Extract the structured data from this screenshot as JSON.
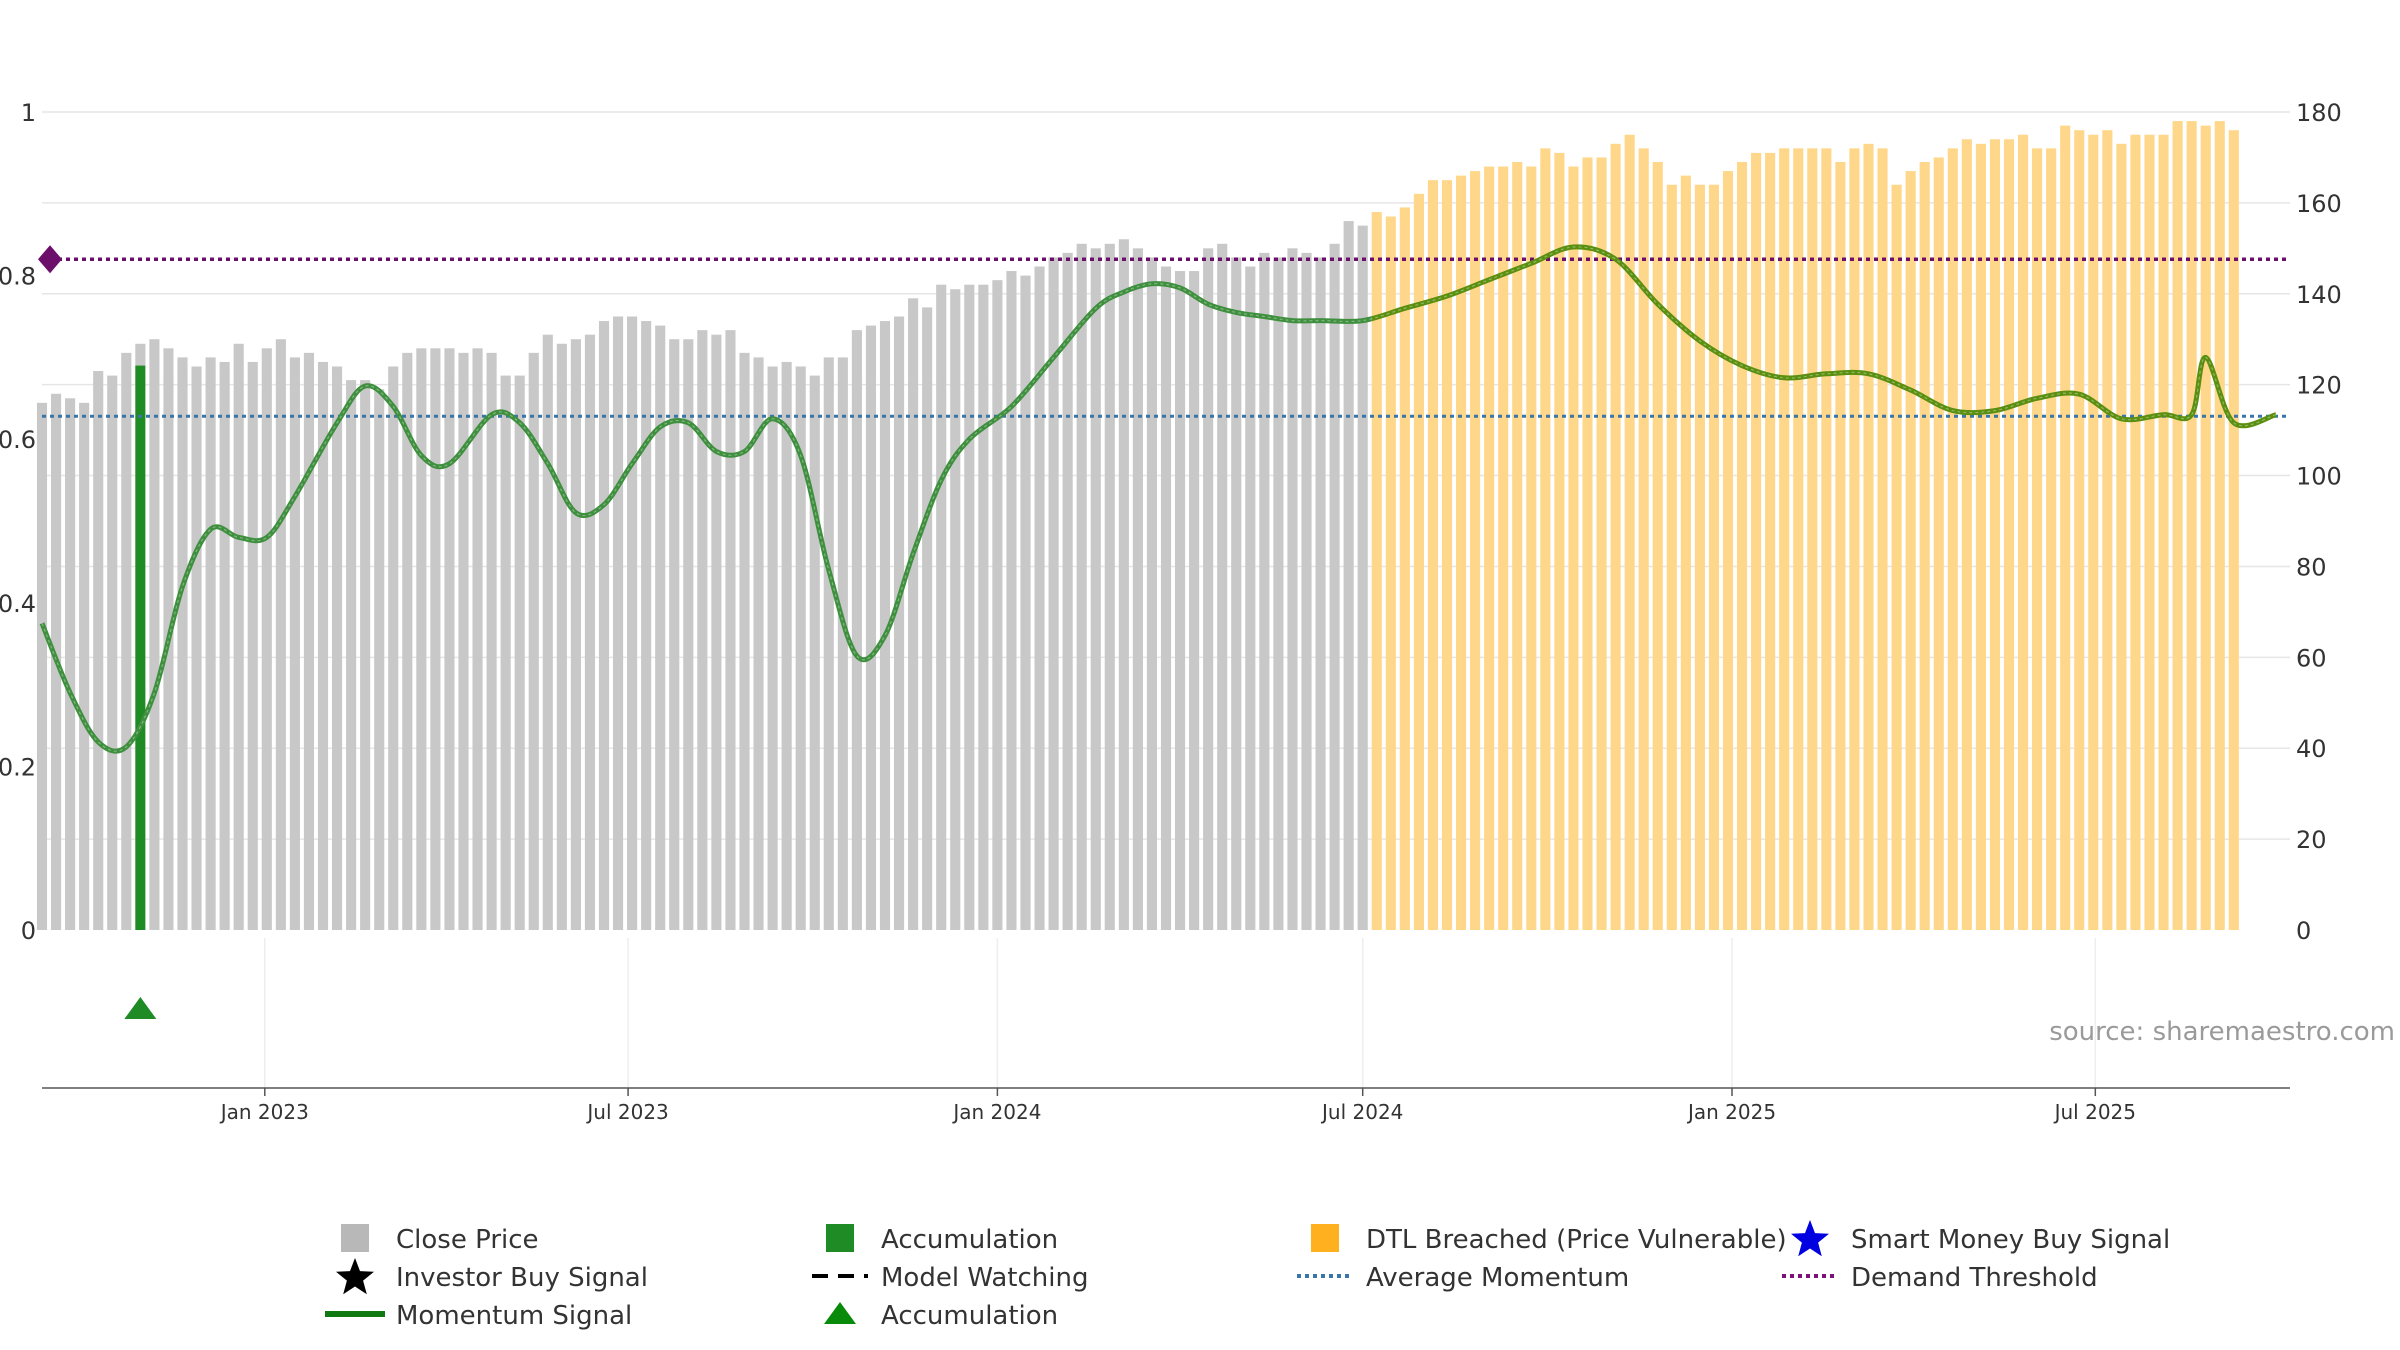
{
  "chart_data": {
    "type": "bar",
    "source": "source: sharemaestro.com",
    "x_range": [
      "2022-09-12",
      "2025-10-06"
    ],
    "x_ticks": [
      {
        "date": "2023-01-01",
        "label": "Jan 2023"
      },
      {
        "date": "2023-07-01",
        "label": "Jul 2023"
      },
      {
        "date": "2024-01-01",
        "label": "Jan 2024"
      },
      {
        "date": "2024-07-01",
        "label": "Jul 2024"
      },
      {
        "date": "2025-01-01",
        "label": "Jan 2025"
      },
      {
        "date": "2025-07-01",
        "label": "Jul 2025"
      }
    ],
    "y_left": {
      "range": [
        0,
        1
      ],
      "ticks": [
        {
          "value": 0,
          "label": "0"
        },
        {
          "value": 0.2,
          "label": "0.2"
        },
        {
          "value": 0.4,
          "label": "0.4"
        },
        {
          "value": 0.6,
          "label": "0.6"
        },
        {
          "value": 0.8,
          "label": "0.8"
        },
        {
          "value": 1,
          "label": "1"
        }
      ]
    },
    "y_right": {
      "range": [
        0,
        180
      ],
      "ticks": [
        0,
        20,
        40,
        60,
        80,
        100,
        120,
        140,
        160,
        180
      ]
    },
    "grid": true,
    "legend_position": "bottom",
    "series_close_price": {
      "name": "Close Price",
      "start_date": "2022-09-12",
      "interval_days": 7,
      "dtl_breach_index": 95,
      "values": [
        116,
        118,
        117,
        116,
        123,
        122,
        127,
        129,
        130,
        128,
        126,
        124,
        126,
        125,
        129,
        125,
        128,
        130,
        126,
        127,
        125,
        124,
        121,
        121,
        119,
        124,
        127,
        128,
        128,
        128,
        127,
        128,
        127,
        122,
        122,
        127,
        131,
        129,
        130,
        131,
        134,
        135,
        135,
        134,
        133,
        130,
        130,
        132,
        131,
        132,
        127,
        126,
        124,
        125,
        124,
        122,
        126,
        126,
        132,
        133,
        134,
        135,
        139,
        137,
        142,
        141,
        142,
        142,
        143,
        145,
        144,
        146,
        148,
        149,
        151,
        150,
        151,
        152,
        150,
        148,
        146,
        145,
        145,
        150,
        151,
        148,
        146,
        149,
        148,
        150,
        149,
        148,
        151,
        156,
        155,
        158,
        157,
        159,
        162,
        165,
        165,
        166,
        167,
        168,
        168,
        169,
        168,
        172,
        171,
        168,
        170,
        170,
        173,
        175,
        172,
        169,
        164,
        166,
        164,
        164,
        167,
        169,
        171,
        171,
        172,
        172,
        172,
        172,
        169,
        172,
        173,
        172,
        164,
        167,
        169,
        170,
        172,
        174,
        173,
        174,
        174,
        175,
        172,
        172,
        177,
        176,
        175,
        176,
        173,
        175,
        175,
        175,
        178,
        178,
        177,
        178,
        176
      ]
    },
    "series_momentum": {
      "name": "Momentum Signal",
      "points": [
        [
          "2022-09-12",
          0.375
        ],
        [
          "2022-09-26",
          0.29
        ],
        [
          "2022-10-10",
          0.23
        ],
        [
          "2022-10-24",
          0.224
        ],
        [
          "2022-11-07",
          0.29
        ],
        [
          "2022-11-21",
          0.42
        ],
        [
          "2022-12-05",
          0.49
        ],
        [
          "2022-12-19",
          0.48
        ],
        [
          "2023-01-02",
          0.48
        ],
        [
          "2023-01-16",
          0.53
        ],
        [
          "2023-02-06",
          0.62
        ],
        [
          "2023-02-20",
          0.665
        ],
        [
          "2023-03-06",
          0.64
        ],
        [
          "2023-03-20",
          0.58
        ],
        [
          "2023-04-03",
          0.57
        ],
        [
          "2023-04-24",
          0.63
        ],
        [
          "2023-05-08",
          0.62
        ],
        [
          "2023-05-22",
          0.57
        ],
        [
          "2023-06-05",
          0.51
        ],
        [
          "2023-06-19",
          0.52
        ],
        [
          "2023-07-03",
          0.57
        ],
        [
          "2023-07-17",
          0.615
        ],
        [
          "2023-07-31",
          0.62
        ],
        [
          "2023-08-14",
          0.585
        ],
        [
          "2023-08-28",
          0.585
        ],
        [
          "2023-09-11",
          0.625
        ],
        [
          "2023-09-25",
          0.58
        ],
        [
          "2023-10-09",
          0.44
        ],
        [
          "2023-10-23",
          0.335
        ],
        [
          "2023-11-06",
          0.36
        ],
        [
          "2023-11-20",
          0.46
        ],
        [
          "2023-12-04",
          0.55
        ],
        [
          "2023-12-18",
          0.6
        ],
        [
          "2024-01-08",
          0.64
        ],
        [
          "2024-01-29",
          0.7
        ],
        [
          "2024-02-19",
          0.76
        ],
        [
          "2024-03-04",
          0.78
        ],
        [
          "2024-03-18",
          0.79
        ],
        [
          "2024-04-01",
          0.785
        ],
        [
          "2024-04-15",
          0.765
        ],
        [
          "2024-04-29",
          0.755
        ],
        [
          "2024-05-13",
          0.75
        ],
        [
          "2024-05-27",
          0.745
        ],
        [
          "2024-06-10",
          0.745
        ],
        [
          "2024-07-01",
          0.745
        ],
        [
          "2024-07-22",
          0.76
        ],
        [
          "2024-08-12",
          0.775
        ],
        [
          "2024-09-02",
          0.795
        ],
        [
          "2024-09-23",
          0.815
        ],
        [
          "2024-10-14",
          0.835
        ],
        [
          "2024-11-04",
          0.82
        ],
        [
          "2024-11-25",
          0.765
        ],
        [
          "2024-12-16",
          0.72
        ],
        [
          "2025-01-06",
          0.69
        ],
        [
          "2025-01-27",
          0.675
        ],
        [
          "2025-02-17",
          0.68
        ],
        [
          "2025-03-10",
          0.68
        ],
        [
          "2025-03-31",
          0.66
        ],
        [
          "2025-04-21",
          0.635
        ],
        [
          "2025-05-12",
          0.635
        ],
        [
          "2025-06-02",
          0.65
        ],
        [
          "2025-06-23",
          0.655
        ],
        [
          "2025-07-14",
          0.625
        ],
        [
          "2025-08-04",
          0.63
        ],
        [
          "2025-08-18",
          0.63
        ],
        [
          "2025-08-25",
          0.7
        ],
        [
          "2025-09-08",
          0.62
        ],
        [
          "2025-09-29",
          0.63
        ]
      ]
    },
    "average_momentum": {
      "name": "Average Momentum",
      "value": 0.628
    },
    "demand_threshold": {
      "name": "Demand Threshold",
      "value": 0.82
    },
    "accumulation_bar": {
      "name": "Accumulation",
      "date": "2022-10-31",
      "value": 0.69
    },
    "accumulation_marker": {
      "name": "Accumulation",
      "date": "2022-10-31"
    },
    "legend": [
      {
        "label": "Close Price",
        "symbol": "square",
        "color": "#b8b8b8"
      },
      {
        "label": "Accumulation",
        "symbol": "square",
        "color": "#1f8b24"
      },
      {
        "label": "DTL Breached (Price Vulnerable)",
        "symbol": "square",
        "color": "#ffb01f"
      },
      {
        "label": "Smart Money Buy Signal",
        "symbol": "star",
        "color": "#0000e0"
      },
      {
        "label": "Investor Buy Signal",
        "symbol": "star",
        "color": "#000000"
      },
      {
        "label": "Model Watching",
        "symbol": "dash",
        "color": "#000000"
      },
      {
        "label": "Average Momentum",
        "symbol": "dot",
        "color": "#3a75a8"
      },
      {
        "label": "Demand Threshold",
        "symbol": "dot",
        "color": "#7a127a"
      },
      {
        "label": "Momentum Signal",
        "symbol": "line",
        "color": "#107810"
      },
      {
        "label": "Accumulation",
        "symbol": "triangle",
        "color": "#0a8a0a"
      }
    ],
    "colors": {
      "close_price": "#c8c8c8",
      "dtl_breached": "#ffd78a",
      "momentum_before": "#3e8f3e",
      "momentum_after": "#5a8f10",
      "momentum_peak": "#0a7a0a",
      "average_momentum": "#3a75a8",
      "demand_threshold": "#6b0f6b",
      "accumulation": "#1f8b24"
    }
  }
}
